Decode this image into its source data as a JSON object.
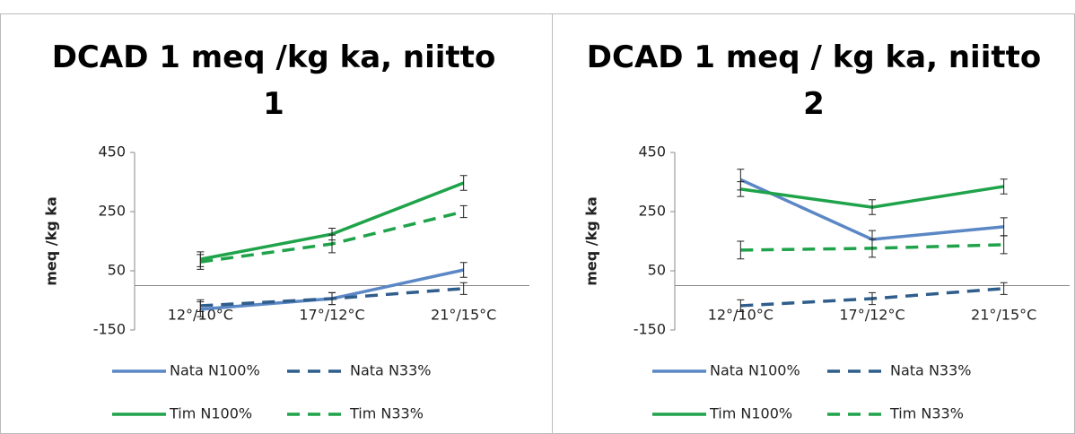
{
  "chart_data": [
    {
      "type": "line",
      "title": "DCAD 1 meq /kg ka, niitto 1",
      "y_label": "meq /kg ka",
      "categories": [
        "12°/10°C",
        "17°/12°C",
        "21°/15°C"
      ],
      "ylim": [
        -150,
        450
      ],
      "yticks": [
        -150,
        50,
        250,
        450
      ],
      "series": [
        {
          "name": "Nata N100%",
          "color": "#5b87c5",
          "dash": false,
          "values": [
            -80,
            -44,
            53
          ],
          "errors": [
            25,
            20,
            25
          ]
        },
        {
          "name": "Nata N33%",
          "color": "#2f5d8c",
          "dash": true,
          "values": [
            -68,
            -44,
            -10
          ],
          "errors": [
            20,
            20,
            20
          ]
        },
        {
          "name": "Tim N100%",
          "color": "#1fa34a",
          "dash": false,
          "values": [
            89,
            174,
            347
          ],
          "errors": [
            25,
            20,
            25
          ]
        },
        {
          "name": "Tim N33%",
          "color": "#1fa34a",
          "dash": true,
          "values": [
            80,
            141,
            250
          ],
          "errors": [
            25,
            30,
            20
          ]
        }
      ]
    },
    {
      "type": "line",
      "title": "DCAD 1 meq / kg ka, niitto 2",
      "y_label": "meq /kg ka",
      "categories": [
        "12°/10°C",
        "17°/12°C",
        "21°/15°C"
      ],
      "ylim": [
        -150,
        450
      ],
      "yticks": [
        -150,
        50,
        250,
        450
      ],
      "series": [
        {
          "name": "Nata N100%",
          "color": "#5b87c5",
          "dash": false,
          "values": [
            358,
            156,
            199
          ],
          "errors": [
            35,
            30,
            30
          ]
        },
        {
          "name": "Nata N33%",
          "color": "#2f5d8c",
          "dash": true,
          "values": [
            -68,
            -44,
            -10
          ],
          "errors": [
            20,
            20,
            20
          ]
        },
        {
          "name": "Tim N100%",
          "color": "#1fa34a",
          "dash": false,
          "values": [
            326,
            265,
            335
          ],
          "errors": [
            25,
            25,
            25
          ]
        },
        {
          "name": "Tim N33%",
          "color": "#1fa34a",
          "dash": true,
          "values": [
            120,
            126,
            138
          ],
          "errors": [
            30,
            30,
            30
          ]
        }
      ]
    }
  ]
}
